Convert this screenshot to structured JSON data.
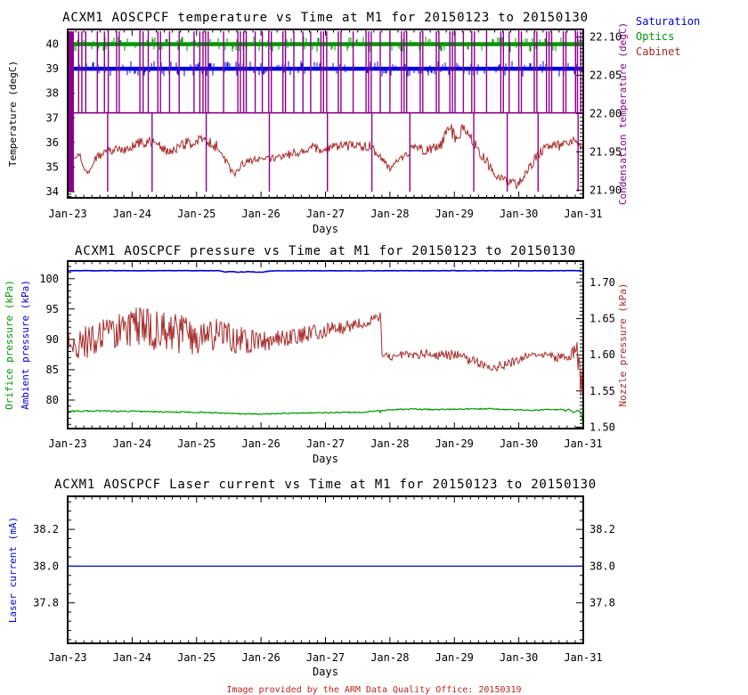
{
  "footer": {
    "text": "Image provided by the ARM Data Quality Office: 20150319",
    "color": "#bb2222"
  },
  "x_axis": {
    "label": "Days",
    "tick_labels": [
      "Jan-23",
      "Jan-24",
      "Jan-25",
      "Jan-26",
      "Jan-27",
      "Jan-28",
      "Jan-29",
      "Jan-30",
      "Jan-31"
    ],
    "range": [
      0,
      8
    ],
    "minor_step": 0.125
  },
  "chart_data": [
    {
      "type": "line",
      "title": "ACXM1 AOSCPCF temperature vs Time at M1 for 20150123 to 20150130",
      "xlabel": "Days",
      "left_axis": {
        "labels": [
          {
            "text": "Temperature (degC)",
            "color": "#000000"
          }
        ],
        "range": [
          33.75,
          40.6
        ],
        "major": [
          [
            34,
            "34"
          ],
          [
            35,
            "35"
          ],
          [
            36,
            "36"
          ],
          [
            37,
            "37"
          ],
          [
            38,
            "38"
          ],
          [
            39,
            "39"
          ],
          [
            40,
            "40"
          ]
        ],
        "minor_step": 0.1
      },
      "right_axis": {
        "labels": [
          {
            "text": "Condensation temperature (degC)",
            "color": "#8b008b"
          }
        ],
        "range": [
          21.89,
          22.11
        ],
        "major": [
          [
            21.9,
            "21.90"
          ],
          [
            21.95,
            "21.95"
          ],
          [
            22.0,
            "22.00"
          ],
          [
            22.05,
            "22.05"
          ],
          [
            22.1,
            "22.10"
          ]
        ],
        "minor_step": 0.005
      },
      "legend": {
        "position": "top-right-outside",
        "items": [
          {
            "label": "Saturation",
            "color": "#0000dd"
          },
          {
            "label": "Optics",
            "color": "#009700"
          },
          {
            "label": "Cabinet",
            "color": "#a62b2b"
          }
        ]
      },
      "series": [
        {
          "name": "optics",
          "kind": "band",
          "axis": "left",
          "value": 40,
          "color": "#009700",
          "thickness": 4.5,
          "noise_prob": 0.25,
          "noise_max": 5
        },
        {
          "name": "saturation",
          "kind": "band",
          "axis": "left",
          "value": 39,
          "color": "#0000dd",
          "thickness": 4.5,
          "noise_prob": 0.25,
          "noise_max": 5
        },
        {
          "name": "cabinet",
          "kind": "noisy",
          "axis": "left",
          "color": "#a62b2b",
          "width": 1,
          "anchors": [
            [
              0,
              35.45,
              0.18
            ],
            [
              0.18,
              35.55,
              0.18
            ],
            [
              0.25,
              34.95,
              0.12
            ],
            [
              0.32,
              34.75,
              0.1
            ],
            [
              0.42,
              35.35,
              0.15
            ],
            [
              0.6,
              35.65,
              0.2
            ],
            [
              0.9,
              35.75,
              0.22
            ],
            [
              1.1,
              35.95,
              0.22
            ],
            [
              1.3,
              36.05,
              0.22
            ],
            [
              1.55,
              35.6,
              0.22
            ],
            [
              1.8,
              35.95,
              0.25
            ],
            [
              2,
              36.05,
              0.25
            ],
            [
              2.2,
              36,
              0.25
            ],
            [
              2.35,
              35.8,
              0.22
            ],
            [
              2.5,
              35,
              0.15
            ],
            [
              2.58,
              34.7,
              0.12
            ],
            [
              2.7,
              35.1,
              0.15
            ],
            [
              2.9,
              35.3,
              0.15
            ],
            [
              3.2,
              35.35,
              0.15
            ],
            [
              3.5,
              35.55,
              0.18
            ],
            [
              3.8,
              35.8,
              0.2
            ],
            [
              4,
              35.7,
              0.2
            ],
            [
              4.2,
              35.9,
              0.22
            ],
            [
              4.5,
              35.85,
              0.22
            ],
            [
              4.7,
              35.85,
              0.2
            ],
            [
              4.85,
              35.35,
              0.18
            ],
            [
              5,
              34.95,
              0.15
            ],
            [
              5.15,
              35.35,
              0.18
            ],
            [
              5.35,
              35.75,
              0.2
            ],
            [
              5.6,
              35.7,
              0.22
            ],
            [
              5.8,
              35.9,
              0.25
            ],
            [
              5.93,
              36.65,
              0.3
            ],
            [
              6.02,
              36.1,
              0.25
            ],
            [
              6.12,
              36.6,
              0.3
            ],
            [
              6.25,
              36.2,
              0.25
            ],
            [
              6.4,
              35.6,
              0.25
            ],
            [
              6.6,
              34.8,
              0.2
            ],
            [
              6.8,
              34.4,
              0.2
            ],
            [
              7,
              34.3,
              0.2
            ],
            [
              7.1,
              34.7,
              0.2
            ],
            [
              7.3,
              35.55,
              0.2
            ],
            [
              7.45,
              35.85,
              0.2
            ],
            [
              7.65,
              35.85,
              0.22
            ],
            [
              7.85,
              36,
              0.22
            ],
            [
              8,
              35.75,
              0.2
            ]
          ]
        },
        {
          "name": "condensation",
          "kind": "spikes",
          "axis": "right",
          "color": "#8b008b",
          "base": 22.001,
          "up_to": 22.1075,
          "deep_to": 21.898,
          "wide_bars": [
            {
              "x": 0.055,
              "w": 6
            }
          ],
          "spikes_up": [
            0.17,
            0.22,
            0.28,
            0.46,
            0.57,
            0.63,
            0.76,
            0.8,
            1.12,
            1.17,
            1.25,
            1.4,
            1.44,
            1.58,
            1.73,
            1.96,
            2.05,
            2.1,
            2.14,
            2.18,
            2.42,
            2.64,
            2.68,
            2.73,
            2.77,
            2.91,
            3.02,
            3.12,
            3.16,
            3.34,
            3.38,
            3.51,
            3.65,
            3.77,
            3.93,
            3.97,
            4.02,
            4.2,
            4.24,
            4.43,
            4.63,
            4.67,
            4.71,
            4.85,
            5,
            5.18,
            5.22,
            5.26,
            5.47,
            5.51,
            5.72,
            5.76,
            5.93,
            5.97,
            6.01,
            6.14,
            6.27,
            6.31,
            6.5,
            6.72,
            6.76,
            6.85,
            7,
            7.04,
            7.24,
            7.28,
            7.43,
            7.47,
            7.51,
            7.69,
            7.73,
            7.88,
            7.91,
            7.96
          ],
          "spikes_deep": [
            0.62,
            1.31,
            2.15,
            3.13,
            4.03,
            4.72,
            5.31,
            6.3,
            6.82,
            7.3,
            7.92
          ]
        }
      ]
    },
    {
      "type": "line",
      "title": "ACXM1 AOSCPCF pressure vs Time at M1 for 20150123 to 20150130",
      "xlabel": "Days",
      "left_axis": {
        "labels": [
          {
            "text": "Orifice pressure (kPa)",
            "color": "#009700"
          },
          {
            "text": "Ambient pressure (kPa)",
            "color": "#0000dd"
          }
        ],
        "range": [
          75.3,
          102.9
        ],
        "major": [
          [
            80,
            "80"
          ],
          [
            85,
            "85"
          ],
          [
            90,
            "90"
          ],
          [
            95,
            "95"
          ],
          [
            100,
            "100"
          ]
        ],
        "minor_step": 1
      },
      "right_axis": {
        "labels": [
          {
            "text": "Nozzle pressure (kPa)",
            "color": "#a62b2b"
          }
        ],
        "range": [
          1.498,
          1.7295
        ],
        "major": [
          [
            1.5,
            "1.50"
          ],
          [
            1.55,
            "1.55"
          ],
          [
            1.6,
            "1.60"
          ],
          [
            1.65,
            "1.65"
          ],
          [
            1.7,
            "1.70"
          ]
        ],
        "minor_step": 0.005
      },
      "legend": {
        "items": []
      },
      "series": [
        {
          "name": "nozzle",
          "kind": "noisy",
          "axis": "right",
          "color": "#a62b2b",
          "width": 1,
          "anchors": [
            [
              0,
              1.613,
              0.022
            ],
            [
              0.3,
              1.618,
              0.024
            ],
            [
              0.6,
              1.625,
              0.026
            ],
            [
              0.9,
              1.638,
              0.027
            ],
            [
              1.1,
              1.64,
              0.027
            ],
            [
              1.4,
              1.632,
              0.028
            ],
            [
              1.7,
              1.628,
              0.028
            ],
            [
              2,
              1.626,
              0.026
            ],
            [
              2.3,
              1.63,
              0.024
            ],
            [
              2.6,
              1.622,
              0.02
            ],
            [
              2.9,
              1.618,
              0.015
            ],
            [
              3.2,
              1.62,
              0.013
            ],
            [
              3.5,
              1.626,
              0.012
            ],
            [
              3.8,
              1.63,
              0.011
            ],
            [
              4.1,
              1.636,
              0.01
            ],
            [
              4.4,
              1.64,
              0.009
            ],
            [
              4.7,
              1.648,
              0.008
            ],
            [
              4.86,
              1.653,
              0.006
            ],
            [
              4.88,
              1.6,
              0.007
            ],
            [
              5,
              1.597,
              0.006
            ],
            [
              5.3,
              1.6,
              0.006
            ],
            [
              5.6,
              1.601,
              0.007
            ],
            [
              5.9,
              1.6,
              0.007
            ],
            [
              6.1,
              1.601,
              0.006
            ],
            [
              6.25,
              1.592,
              0.008
            ],
            [
              6.4,
              1.588,
              0.007
            ],
            [
              6.6,
              1.583,
              0.006
            ],
            [
              6.8,
              1.586,
              0.006
            ],
            [
              7,
              1.594,
              0.006
            ],
            [
              7.15,
              1.6,
              0.005
            ],
            [
              7.35,
              1.601,
              0.005
            ],
            [
              7.55,
              1.596,
              0.006
            ],
            [
              7.75,
              1.597,
              0.006
            ],
            [
              7.85,
              1.603,
              0.01
            ],
            [
              7.9,
              1.6,
              0.02
            ],
            [
              7.95,
              1.565,
              0.04
            ],
            [
              7.98,
              1.545,
              0.03
            ],
            [
              8,
              1.53,
              0.02
            ]
          ]
        },
        {
          "name": "orifice",
          "kind": "noisy",
          "axis": "left",
          "color": "#009700",
          "width": 1.2,
          "down_spikes": {
            "prob": 0.004,
            "mag": -0.5
          },
          "anchors": [
            [
              0,
              78.15,
              0.12
            ],
            [
              0.5,
              78.2,
              0.12
            ],
            [
              1,
              78.15,
              0.12
            ],
            [
              1.5,
              78.05,
              0.1
            ],
            [
              2,
              78,
              0.1
            ],
            [
              2.3,
              77.9,
              0.1
            ],
            [
              2.6,
              77.75,
              0.08
            ],
            [
              3,
              77.7,
              0.08
            ],
            [
              3.4,
              77.8,
              0.08
            ],
            [
              3.8,
              77.9,
              0.08
            ],
            [
              4.2,
              77.95,
              0.1
            ],
            [
              4.6,
              78,
              0.1
            ],
            [
              4.9,
              78.3,
              0.1
            ],
            [
              5.1,
              78.45,
              0.1
            ],
            [
              5.4,
              78.5,
              0.1
            ],
            [
              5.7,
              78.45,
              0.12
            ],
            [
              6,
              78.5,
              0.1
            ],
            [
              6.3,
              78.55,
              0.1
            ],
            [
              6.6,
              78.55,
              0.1
            ],
            [
              6.9,
              78.4,
              0.1
            ],
            [
              7.2,
              78.3,
              0.1
            ],
            [
              7.5,
              78.45,
              0.1
            ],
            [
              7.8,
              78.4,
              0.1
            ],
            [
              7.85,
              77.95,
              0.1
            ],
            [
              7.9,
              78.3,
              0.1
            ],
            [
              7.95,
              78.2,
              0.15
            ],
            [
              7.98,
              77,
              0.3
            ],
            [
              8,
              75.9,
              0.2
            ]
          ]
        },
        {
          "name": "ambient",
          "kind": "noisy",
          "axis": "left",
          "color": "#0000dd",
          "width": 1.6,
          "step": 2,
          "anchors": [
            [
              0,
              101.32,
              0.03
            ],
            [
              2.35,
              101.32,
              0.03
            ],
            [
              2.45,
              101.1,
              0.04
            ],
            [
              2.55,
              101.18,
              0.04
            ],
            [
              2.65,
              101.08,
              0.05
            ],
            [
              2.8,
              101.15,
              0.04
            ],
            [
              2.95,
              101.05,
              0.05
            ],
            [
              3.05,
              101.1,
              0.04
            ],
            [
              3.15,
              101.3,
              0.03
            ],
            [
              8,
              101.32,
              0.03
            ]
          ]
        }
      ]
    },
    {
      "type": "line",
      "title": "ACXM1 AOSCPCF Laser current vs Time at M1 for 20150123 to 20150130",
      "xlabel": "Days",
      "left_axis": {
        "labels": [
          {
            "text": "Laser current (mA)",
            "color": "#0000dd"
          }
        ],
        "range": [
          37.58,
          38.38
        ],
        "major": [
          [
            37.8,
            "37.8"
          ],
          [
            38.0,
            "38.0"
          ],
          [
            38.2,
            "38.2"
          ]
        ],
        "minor_step": 0.05
      },
      "right_axis": {
        "labels": [],
        "range": [
          37.58,
          38.38
        ],
        "major": [
          [
            37.8,
            "37.8"
          ],
          [
            38.0,
            "38.0"
          ],
          [
            38.2,
            "38.2"
          ]
        ],
        "minor_step": 0.05
      },
      "legend": {
        "items": []
      },
      "series": [
        {
          "name": "laser_current",
          "kind": "noisy",
          "axis": "left",
          "color": "#0000dd",
          "width": 1.2,
          "step": 4,
          "anchors": [
            [
              0,
              38,
              0
            ],
            [
              8,
              38,
              0
            ]
          ]
        }
      ]
    }
  ]
}
